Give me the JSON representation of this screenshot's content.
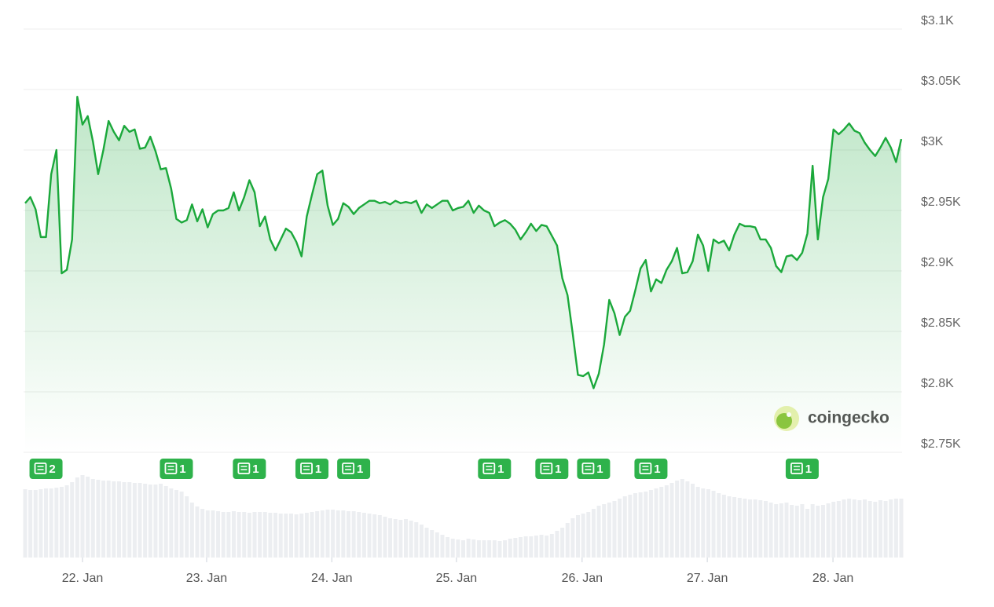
{
  "chart_data": {
    "type": "line",
    "values": [
      2956,
      2961,
      2951,
      2928,
      2928,
      2980,
      3000,
      2898,
      2901,
      2926,
      3044,
      3021,
      3028,
      3007,
      2980,
      3000,
      3024,
      3015,
      3008,
      3020,
      3015,
      3017,
      3001,
      3002,
      3011,
      2999,
      2984,
      2985,
      2968,
      2943,
      2940,
      2942,
      2955,
      2941,
      2951,
      2936,
      2947,
      2950,
      2950,
      2952,
      2965,
      2950,
      2961,
      2975,
      2965,
      2937,
      2945,
      2926,
      2917,
      2926,
      2935,
      2932,
      2924,
      2912,
      2945,
      2963,
      2980,
      2983,
      2954,
      2938,
      2943,
      2956,
      2953,
      2947,
      2952,
      2955,
      2958,
      2958,
      2956,
      2957,
      2955,
      2958,
      2956,
      2957,
      2956,
      2958,
      2948,
      2955,
      2952,
      2955,
      2958,
      2958,
      2950,
      2952,
      2953,
      2958,
      2948,
      2954,
      2950,
      2948,
      2937,
      2940,
      2942,
      2939,
      2934,
      2926,
      2932,
      2939,
      2933,
      2938,
      2937,
      2929,
      2921,
      2894,
      2880,
      2848,
      2814,
      2813,
      2816,
      2803,
      2815,
      2839,
      2876,
      2865,
      2847,
      2862,
      2867,
      2884,
      2902,
      2909,
      2883,
      2893,
      2890,
      2901,
      2908,
      2919,
      2898,
      2899,
      2908,
      2930,
      2921,
      2900,
      2926,
      2923,
      2925,
      2917,
      2930,
      2939,
      2937,
      2937,
      2936,
      2926,
      2926,
      2919,
      2904,
      2899,
      2912,
      2913,
      2909,
      2915,
      2931,
      2987,
      2926,
      2961,
      2976,
      3017,
      3013,
      3017,
      3022,
      3016,
      3014,
      3006,
      3000,
      2995,
      3002,
      3010,
      3002,
      2990,
      3009
    ],
    "volume": [
      87,
      86,
      86,
      87,
      88,
      88,
      89,
      90,
      92,
      96,
      102,
      105,
      103,
      100,
      99,
      98,
      98,
      97,
      97,
      96,
      96,
      95,
      95,
      94,
      93,
      93,
      94,
      91,
      88,
      86,
      84,
      78,
      70,
      65,
      62,
      60,
      60,
      59,
      58,
      58,
      59,
      58,
      58,
      57,
      58,
      58,
      58,
      57,
      57,
      56,
      56,
      56,
      55,
      56,
      57,
      58,
      59,
      60,
      61,
      61,
      60,
      60,
      59,
      59,
      58,
      57,
      56,
      55,
      54,
      52,
      50,
      49,
      48,
      49,
      47,
      45,
      42,
      38,
      35,
      32,
      29,
      26,
      24,
      23,
      22,
      24,
      23,
      22,
      22,
      22,
      22,
      21,
      22,
      24,
      25,
      26,
      27,
      27,
      28,
      29,
      28,
      30,
      34,
      38,
      44,
      50,
      54,
      56,
      58,
      62,
      66,
      68,
      70,
      72,
      75,
      78,
      80,
      82,
      83,
      84,
      86,
      88,
      90,
      92,
      95,
      98,
      100,
      97,
      94,
      90,
      88,
      87,
      85,
      82,
      80,
      78,
      77,
      76,
      75,
      74,
      74,
      73,
      72,
      70,
      68,
      69,
      70,
      67,
      66,
      68,
      62,
      68,
      66,
      67,
      69,
      71,
      72,
      74,
      75,
      74,
      73,
      74,
      72,
      71,
      73,
      72,
      74,
      75,
      75
    ],
    "line_color": "#1ba83b",
    "volume_color": "#eceef1",
    "ylim": [
      2750,
      3100
    ],
    "yticks": [
      {
        "value": 2750,
        "label": "$2.75K"
      },
      {
        "value": 2800,
        "label": "$2.8K"
      },
      {
        "value": 2850,
        "label": "$2.85K"
      },
      {
        "value": 2900,
        "label": "$2.9K"
      },
      {
        "value": 2950,
        "label": "$2.95K"
      },
      {
        "value": 3000,
        "label": "$3K"
      },
      {
        "value": 3050,
        "label": "$3.05K"
      },
      {
        "value": 3100,
        "label": "$3.1K"
      }
    ],
    "xlim": [
      0,
      168
    ],
    "xticks": [
      {
        "value": 11,
        "label": "22. Jan"
      },
      {
        "value": 34.8,
        "label": "23. Jan"
      },
      {
        "value": 58.8,
        "label": "24. Jan"
      },
      {
        "value": 82.7,
        "label": "25. Jan"
      },
      {
        "value": 106.8,
        "label": "26. Jan"
      },
      {
        "value": 130.8,
        "label": "27. Jan"
      },
      {
        "value": 154.9,
        "label": "28. Jan"
      }
    ],
    "grid": true,
    "news_events": [
      {
        "x": 4,
        "count": 2
      },
      {
        "x": 29,
        "count": 1
      },
      {
        "x": 43,
        "count": 1
      },
      {
        "x": 55,
        "count": 1
      },
      {
        "x": 63,
        "count": 1
      },
      {
        "x": 90,
        "count": 1
      },
      {
        "x": 101,
        "count": 1
      },
      {
        "x": 109,
        "count": 1
      },
      {
        "x": 120,
        "count": 1
      },
      {
        "x": 149,
        "count": 1
      }
    ],
    "watermark": "coingecko"
  }
}
